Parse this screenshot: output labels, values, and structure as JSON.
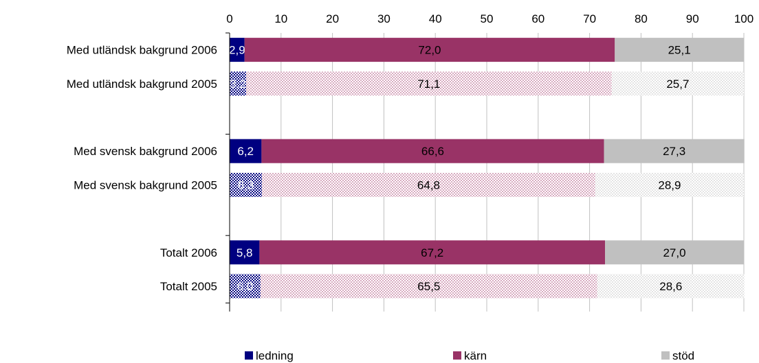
{
  "chart_data": {
    "type": "bar",
    "orientation": "horizontal",
    "stacked": true,
    "title": "",
    "xlabel": "",
    "ylabel": "",
    "xlim": [
      0,
      100
    ],
    "x_ticks": [
      0,
      10,
      20,
      30,
      40,
      50,
      60,
      70,
      80,
      90,
      100
    ],
    "x_tick_labels": [
      "0",
      "10",
      "20",
      "30",
      "40",
      "50",
      "60",
      "70",
      "80",
      "90",
      "100"
    ],
    "x_axis_position": "top",
    "grid": true,
    "legend_position": "bottom",
    "groups": [
      {
        "rows": [
          {
            "label": "Med utländsk bakgrund 2006",
            "values": [
              2.9,
              72.0,
              25.1
            ],
            "value_labels": [
              "2,9",
              "72,0",
              "25,1"
            ],
            "pattern": "solid"
          },
          {
            "label": "Med utländsk bakgrund 2005",
            "values": [
              3.2,
              71.1,
              25.7
            ],
            "value_labels": [
              "3,2",
              "71,1",
              "25,7"
            ],
            "pattern": "checkered"
          }
        ]
      },
      {
        "rows": [
          {
            "label": "Med svensk bakgrund 2006",
            "values": [
              6.2,
              66.6,
              27.3
            ],
            "value_labels": [
              "6,2",
              "66,6",
              "27,3"
            ],
            "pattern": "solid"
          },
          {
            "label": "Med svensk bakgrund 2005",
            "values": [
              6.3,
              64.8,
              28.9
            ],
            "value_labels": [
              "6,3",
              "64,8",
              "28,9"
            ],
            "pattern": "checkered"
          }
        ]
      },
      {
        "rows": [
          {
            "label": "Totalt 2006",
            "values": [
              5.8,
              67.2,
              27.0
            ],
            "value_labels": [
              "5,8",
              "67,2",
              "27,0"
            ],
            "pattern": "solid"
          },
          {
            "label": "Totalt 2005",
            "values": [
              6.0,
              65.5,
              28.6
            ],
            "value_labels": [
              "6,0",
              "65,5",
              "28,6"
            ],
            "pattern": "checkered"
          }
        ]
      }
    ],
    "series": [
      {
        "name": "ledning",
        "color": "#000080",
        "label_color": "#ffffff",
        "pattern_color": "#000080"
      },
      {
        "name": "kärn",
        "color": "#993366",
        "label_color": "#000000",
        "pattern_color": "#d8aac0"
      },
      {
        "name": "stöd",
        "color": "#c0c0c0",
        "label_color": "#000000",
        "pattern_color": "#e4e4e4"
      }
    ]
  }
}
